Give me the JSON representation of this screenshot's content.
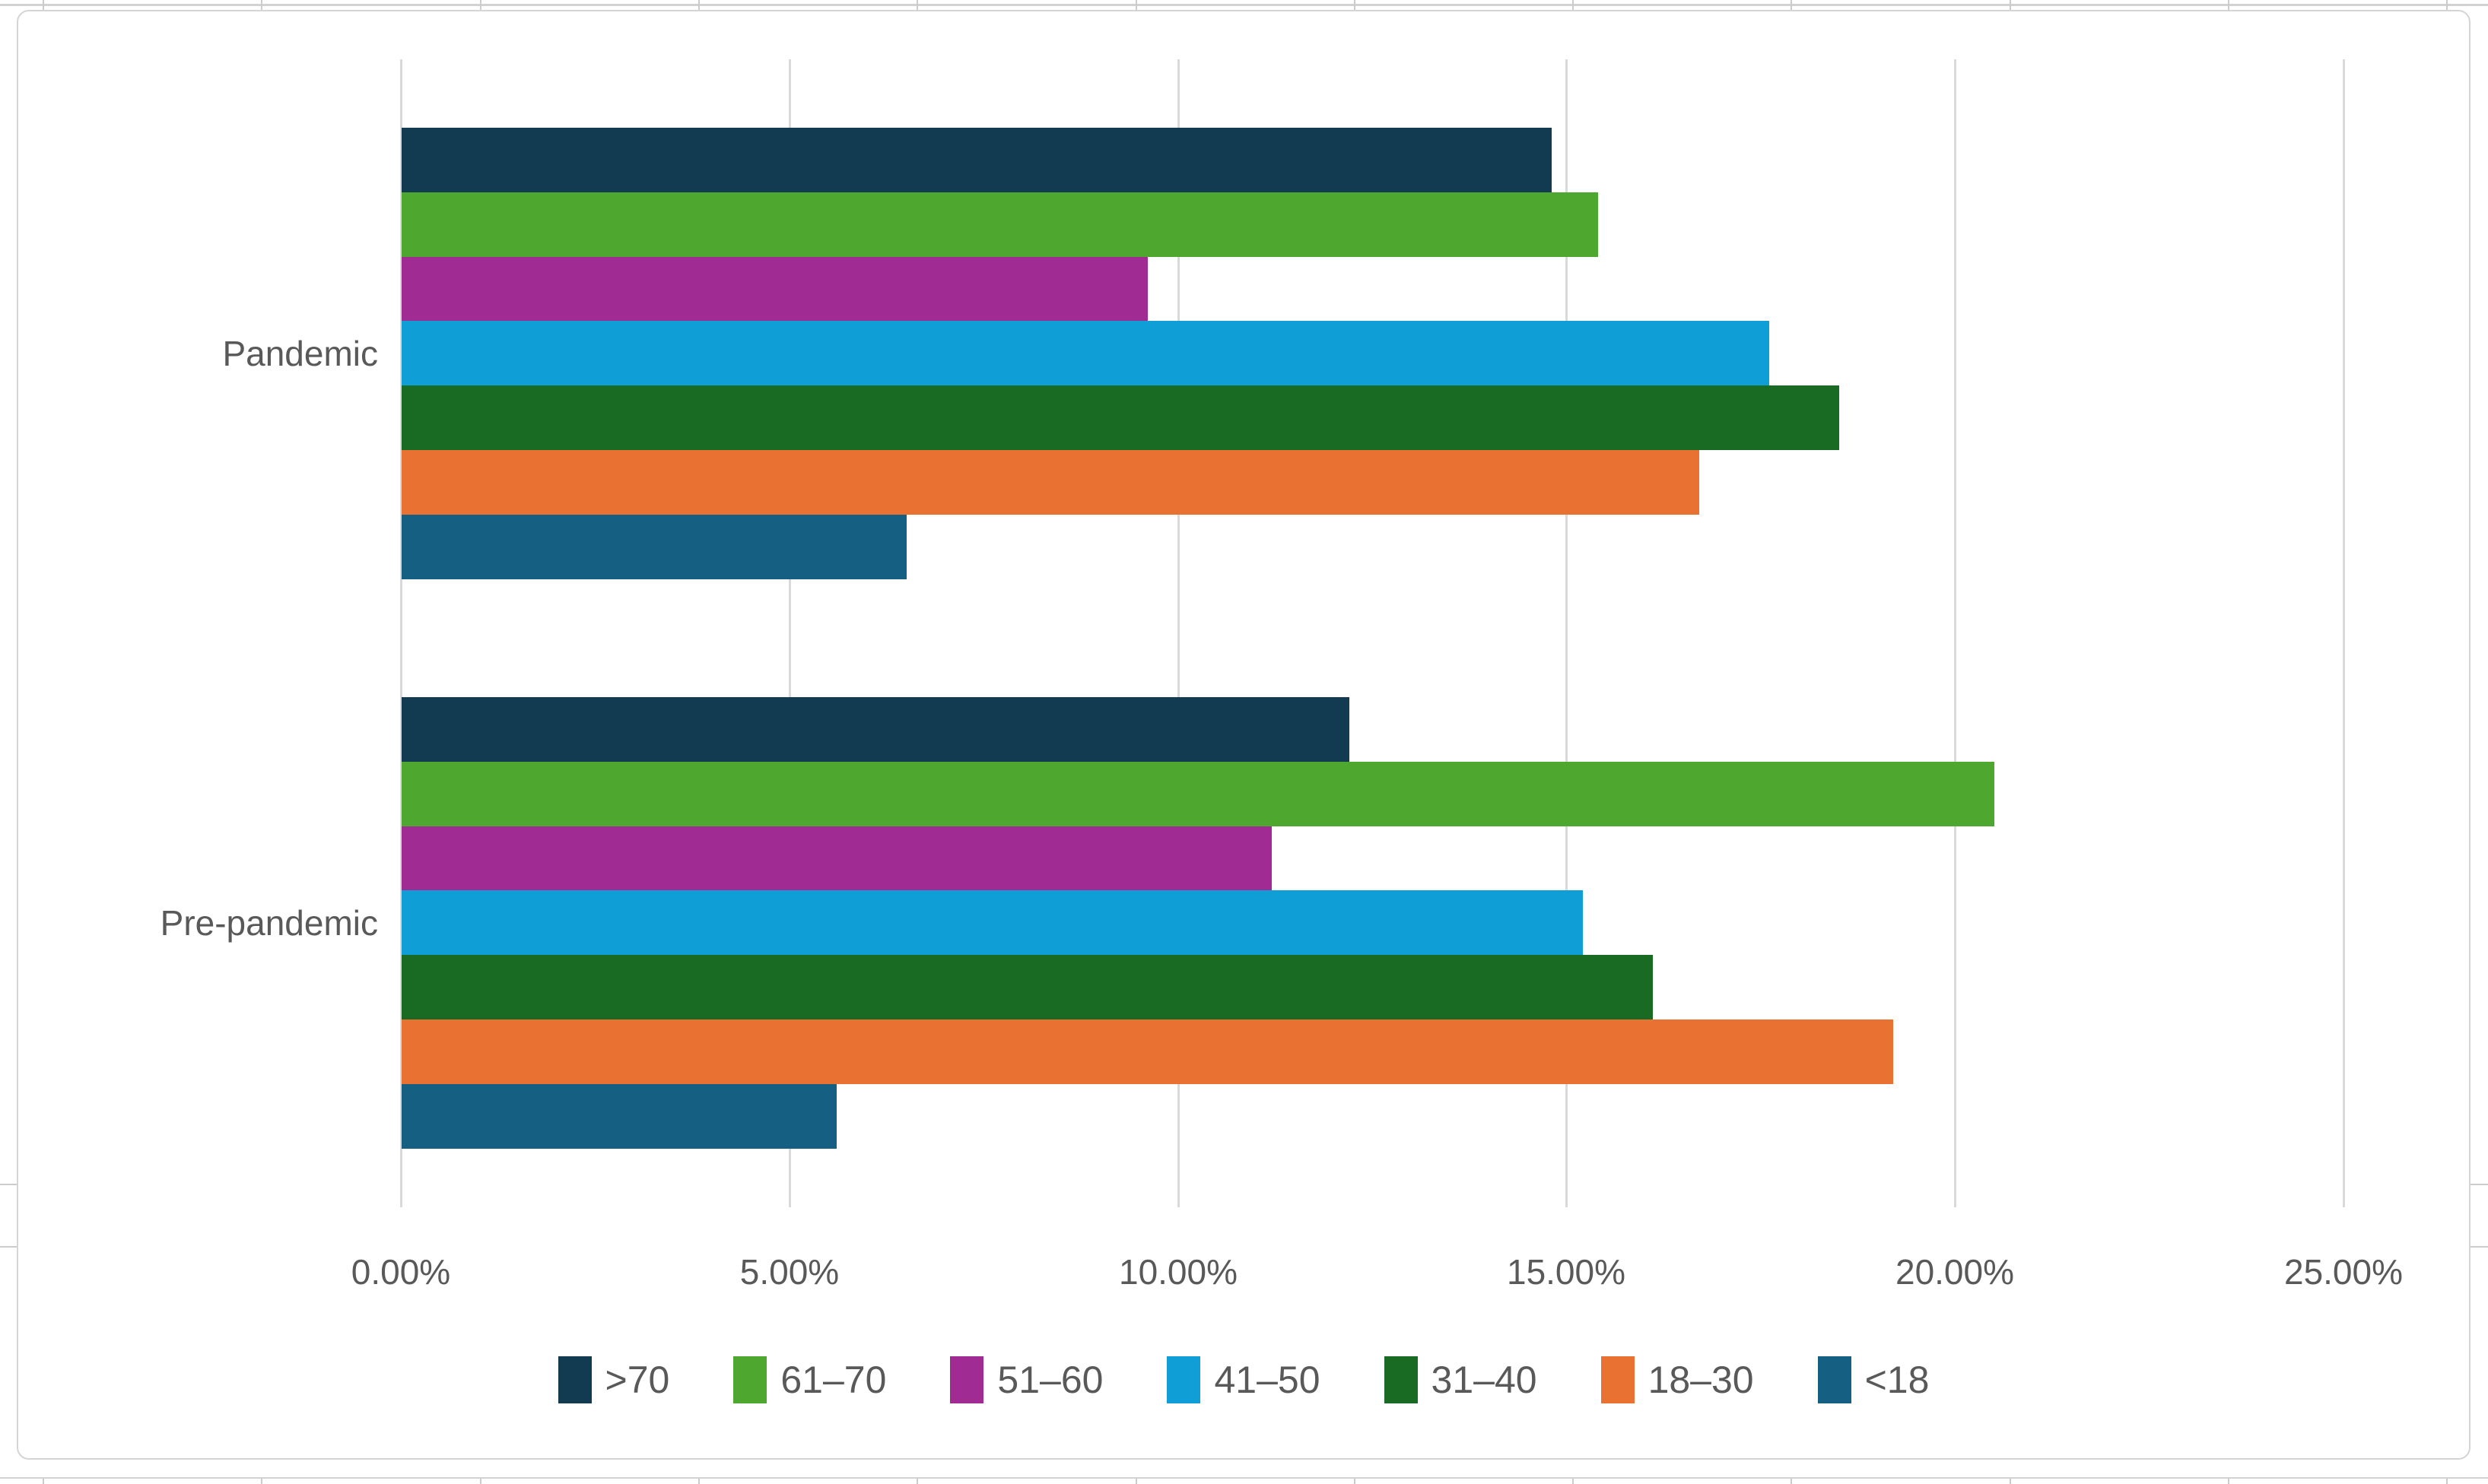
{
  "chart_data": {
    "type": "bar",
    "orientation": "horizontal",
    "title": "",
    "categories": [
      "Pandemic",
      "Pre-pandemic"
    ],
    "series": [
      {
        "name": ">70",
        "color": "#123a50",
        "values": [
          14.8,
          12.2
        ]
      },
      {
        "name": "61–70",
        "color": "#4ea72e",
        "values": [
          15.4,
          20.5
        ]
      },
      {
        "name": "51–60",
        "color": "#a02b93",
        "values": [
          9.6,
          11.2
        ]
      },
      {
        "name": "41–50",
        "color": "#0f9ed5",
        "values": [
          17.6,
          15.2
        ]
      },
      {
        "name": "31–40",
        "color": "#196b24",
        "values": [
          18.5,
          16.1
        ]
      },
      {
        "name": "18–30",
        "color": "#e97132",
        "values": [
          16.7,
          19.2
        ]
      },
      {
        "name": "<18",
        "color": "#156082",
        "values": [
          6.5,
          5.6
        ]
      }
    ],
    "x_axis": {
      "min": 0,
      "max": 25,
      "tick_values": [
        0,
        5,
        10,
        15,
        20,
        25
      ],
      "tick_labels": [
        "0.00%",
        "5.00%",
        "10.00%",
        "15.00%",
        "20.00%",
        "25.00%"
      ]
    },
    "grid": true,
    "legend_position": "bottom"
  },
  "colors": {
    "grid": "#d9d9d9",
    "axis_text": "#595959",
    "chart_border": "#d5d5d5",
    "worksheet_line": "#d2d2d2",
    "background": "#ffffff"
  }
}
